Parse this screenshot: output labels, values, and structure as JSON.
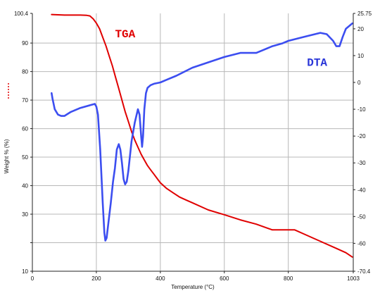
{
  "chart_data": {
    "type": "line",
    "xlabel": "Temperature (°C)",
    "y_left_label": "Weight % (%)",
    "x_ticks": [
      0,
      200,
      400,
      600,
      800,
      1003
    ],
    "y_left_ticks": [
      10,
      20,
      30,
      40,
      50,
      60,
      70,
      80,
      90,
      100.4
    ],
    "y_right_ticks": [
      -70.4,
      -60,
      -50,
      -40,
      -30,
      -20,
      -10,
      0,
      10,
      20,
      25.75
    ],
    "y_left_tick_labels": [
      "10",
      "",
      "30",
      "40",
      "50",
      "60",
      "70",
      "80",
      "90",
      "100.4"
    ],
    "y_right_tick_labels": [
      "-70.4",
      "-60",
      "-50",
      "-40",
      "-30",
      "-20",
      "-10",
      "0",
      "10",
      "20",
      "25.75"
    ],
    "x_tick_labels": [
      "0",
      "200",
      "400",
      "600",
      "800",
      "1003"
    ],
    "xlim": [
      0,
      1003
    ],
    "y_left_lim": [
      10,
      100.4
    ],
    "y_right_lim": [
      -70.4,
      25.75
    ],
    "grid": true,
    "colors": {
      "tga": "#e00000",
      "dta": "#3c4ef0",
      "grid": "#b8b8b8",
      "axis": "#222222"
    },
    "annotations": [
      {
        "text": "TGA",
        "color": "#e00000",
        "x": 290,
        "y": 92
      },
      {
        "text": "DTA",
        "color": "#2a36d8",
        "x": 890,
        "y": 82
      }
    ],
    "series": [
      {
        "name": "TGA",
        "axis": "left",
        "x": [
          60,
          100,
          150,
          170,
          180,
          190,
          200,
          210,
          220,
          230,
          240,
          250,
          260,
          270,
          280,
          290,
          300,
          310,
          320,
          330,
          340,
          350,
          360,
          370,
          380,
          390,
          400,
          420,
          440,
          460,
          480,
          500,
          550,
          600,
          650,
          700,
          750,
          800,
          820,
          850,
          900,
          950,
          980,
          1000
        ],
        "y": [
          100,
          99.8,
          99.8,
          99.7,
          99.5,
          98.5,
          97,
          95,
          92,
          89,
          85.5,
          82,
          78,
          74,
          70,
          66,
          62.5,
          59,
          56,
          53.5,
          51,
          49,
          47,
          45.5,
          44,
          42.5,
          41,
          39,
          37.5,
          36,
          35,
          34,
          31.5,
          29.8,
          28,
          26.5,
          24.5,
          24.5,
          24.5,
          23,
          20.5,
          18,
          16.5,
          15
        ]
      },
      {
        "name": "DTA",
        "axis": "right",
        "x": [
          60,
          63,
          70,
          80,
          90,
          100,
          120,
          150,
          180,
          195,
          200,
          205,
          212,
          220,
          225,
          228,
          232,
          238,
          245,
          252,
          258,
          264,
          270,
          275,
          280,
          285,
          290,
          295,
          300,
          310,
          320,
          330,
          335,
          340,
          343,
          346,
          350,
          355,
          360,
          370,
          380,
          400,
          420,
          450,
          500,
          550,
          600,
          650,
          700,
          720,
          750,
          780,
          800,
          850,
          900,
          920,
          940,
          950,
          960,
          970,
          980,
          1000
        ],
        "y": [
          -4,
          -6,
          -10,
          -12,
          -12.5,
          -12.5,
          -11,
          -9.5,
          -8.5,
          -8,
          -9,
          -12,
          -25,
          -45,
          -56,
          -59,
          -58,
          -52,
          -45,
          -37,
          -32,
          -25,
          -23,
          -25,
          -30,
          -36,
          -38,
          -37,
          -33,
          -22,
          -15,
          -10,
          -12,
          -20,
          -24,
          -20,
          -10,
          -4,
          -2,
          -1,
          -0.5,
          0,
          1,
          2.5,
          5.5,
          7.5,
          9.5,
          11,
          11,
          12,
          13.5,
          14.5,
          15.5,
          17,
          18.5,
          18,
          15.5,
          13.5,
          13.5,
          17,
          20,
          22
        ]
      }
    ]
  }
}
